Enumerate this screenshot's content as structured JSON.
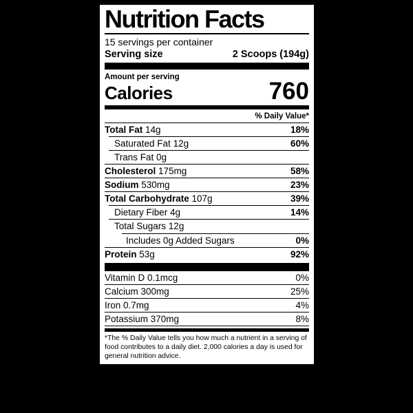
{
  "colors": {
    "page_background": "#000000",
    "label_background": "#ffffff",
    "text": "#000000"
  },
  "label": {
    "title": "Nutrition Facts",
    "servings_per_container": "15 servings per container",
    "serving_size_label": "Serving size",
    "serving_size_value": "2 Scoops (194g)",
    "amount_per_serving": "Amount per serving",
    "calories_label": "Calories",
    "calories_value": "760",
    "daily_value_header": "% Daily Value*",
    "nutrients": [
      {
        "name": "Total Fat",
        "amount": "14g",
        "dv": "18%",
        "bold": true,
        "indent": 0
      },
      {
        "name": "Saturated Fat",
        "amount": "12g",
        "dv": "60%",
        "bold": false,
        "indent": 1
      },
      {
        "name": "Trans Fat",
        "amount": "0g",
        "dv": "",
        "bold": false,
        "indent": 1
      },
      {
        "name": "Cholesterol",
        "amount": "175mg",
        "dv": "58%",
        "bold": true,
        "indent": 0
      },
      {
        "name": "Sodium",
        "amount": "530mg",
        "dv": "23%",
        "bold": true,
        "indent": 0
      },
      {
        "name": "Total Carbohydrate",
        "amount": "107g",
        "dv": "39%",
        "bold": true,
        "indent": 0
      },
      {
        "name": "Dietary Fiber",
        "amount": "4g",
        "dv": "14%",
        "bold": false,
        "indent": 1
      },
      {
        "name": "Total Sugars",
        "amount": "12g",
        "dv": "",
        "bold": false,
        "indent": 1
      },
      {
        "name": "Includes 0g Added Sugars",
        "amount": "",
        "dv": "0%",
        "bold": false,
        "indent": 2
      },
      {
        "name": "Protein",
        "amount": "53g",
        "dv": "92%",
        "bold": true,
        "indent": 0
      }
    ],
    "vitamins": [
      {
        "name": "Vitamin D",
        "amount": "0.1mcg",
        "dv": "0%"
      },
      {
        "name": "Calcium",
        "amount": "300mg",
        "dv": "25%"
      },
      {
        "name": "Iron",
        "amount": "0.7mg",
        "dv": "4%"
      },
      {
        "name": "Potassium",
        "amount": "370mg",
        "dv": "8%"
      }
    ],
    "footnote": "*The % Daily Value tells you how much a nutrient in a serving of food contributes to a daily diet. 2,000 calories a day is used for general nutrition advice."
  }
}
